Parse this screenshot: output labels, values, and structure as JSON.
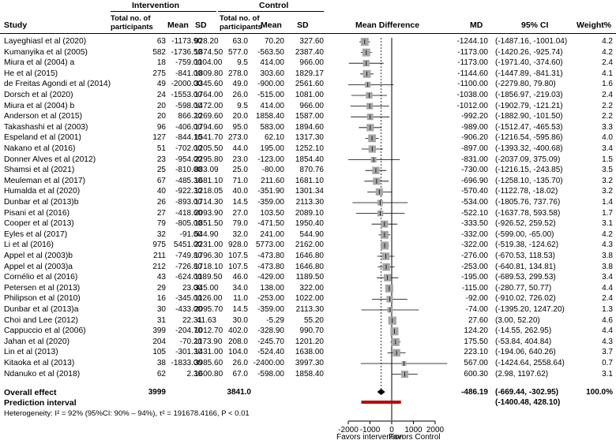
{
  "headers": {
    "intervention": "Intervention",
    "control": "Control",
    "study": "Study",
    "total_participants": "Total no. of participants",
    "mean": "Mean",
    "sd": "SD",
    "mean_difference": "Mean Difference",
    "md": "MD",
    "ci": "95% CI",
    "weight": "Weight%"
  },
  "rows": [
    {
      "study": "Layeghiasl et al (2020)",
      "n1": "63",
      "m1": "-1173.90",
      "sd1": "928.20",
      "n2": "63.0",
      "m2": "70.20",
      "sd2": "327.60",
      "md": "-1244.10",
      "ci": "(-1487.16, -1001.04)",
      "w": "4.2"
    },
    {
      "study": "Kumanyika et al (2005)",
      "n1": "582",
      "m1": "-1736.50",
      "sd1": "1874.50",
      "n2": "577.0",
      "m2": "-563.50",
      "sd2": "2387.40",
      "md": "-1173.00",
      "ci": "(-1420.26, -925.74)",
      "w": "4.2"
    },
    {
      "study": "Miura et al (2004) a",
      "n1": "18",
      "m1": "-759.00",
      "sd1": "1104.00",
      "n2": "9.5",
      "m2": "414.00",
      "sd2": "966.00",
      "md": "-1173.00",
      "ci": "(-1971.40, -374.60)",
      "w": "2.4"
    },
    {
      "study": "He et al (2015)",
      "n1": "275",
      "m1": "-841.00",
      "sd1": "1809.80",
      "n2": "278.0",
      "m2": "303.60",
      "sd2": "1829.17",
      "md": "-1144.60",
      "ci": "(-1447.89, -841.31)",
      "w": "4.1"
    },
    {
      "study": "de Freitas Agondi et al (2014)",
      "n1": "49",
      "m1": "-2000.00",
      "sd1": "3345.60",
      "n2": "49.0",
      "m2": "-900.00",
      "sd2": "2561.60",
      "md": "-1100.00",
      "ci": "(-2279.80, 79.80)",
      "w": "1.6"
    },
    {
      "study": "Dorsch et al (2020)",
      "n1": "24",
      "m1": "-1553.00",
      "sd1": "1764.00",
      "n2": "26.0",
      "m2": "-515.00",
      "sd2": "1081.00",
      "md": "-1038.00",
      "ci": "(-1856.97, -219.03)",
      "w": "2.4"
    },
    {
      "study": "Miura et al (2004) b",
      "n1": "20",
      "m1": "-598.00",
      "sd1": "1472.00",
      "n2": "9.5",
      "m2": "414.00",
      "sd2": "966.00",
      "md": "-1012.00",
      "ci": "(-1902.79, -121.21)",
      "w": "2.2"
    },
    {
      "study": "Anderson et al (2015)",
      "n1": "20",
      "m1": "866.20",
      "sd1": "1269.60",
      "n2": "20.0",
      "m2": "1858.40",
      "sd2": "1587.00",
      "md": "-992.20",
      "ci": "(-1882.90, -101.50)",
      "w": "2.2"
    },
    {
      "study": "Takashashi et al (2003)",
      "n1": "96",
      "m1": "-406.00",
      "sd1": "1794.60",
      "n2": "95.0",
      "m2": "583.00",
      "sd2": "1894.60",
      "md": "-989.00",
      "ci": "(-1512.47, -465.53)",
      "w": "3.3"
    },
    {
      "study": "Espeland et al (2001)",
      "n1": "127",
      "m1": "-844.10",
      "sd1": "1541.70",
      "n2": "273.0",
      "m2": "62.10",
      "sd2": "1317.30",
      "md": "-906.20",
      "ci": "(-1216.54, -595.86)",
      "w": "4.0"
    },
    {
      "study": "Nakano et al (2016)",
      "n1": "51",
      "m1": "-702.00",
      "sd1": "1205.50",
      "n2": "44.0",
      "m2": "195.00",
      "sd2": "1252.10",
      "md": "-897.00",
      "ci": "(-1393.32, -400.68)",
      "w": "3.4"
    },
    {
      "study": "Donner Alves et al (2012)",
      "n1": "23",
      "m1": "-954.00",
      "sd1": "2295.80",
      "n2": "23.0",
      "m2": "-123.00",
      "sd2": "1854.40",
      "md": "-831.00",
      "ci": "(-2037.09, 375.09)",
      "w": "1.5"
    },
    {
      "study": "Shamsi et al (2021)",
      "n1": "25",
      "m1": "-810.00",
      "sd1": "883.09",
      "n2": "25.0",
      "m2": "-80.00",
      "sd2": "870.76",
      "md": "-730.00",
      "ci": "(-1216.15, -243.85)",
      "w": "3.5"
    },
    {
      "study": "Meuleman et al (2017)",
      "n1": "67",
      "m1": "-485.30",
      "sd1": "1681.10",
      "n2": "71.0",
      "m2": "211.60",
      "sd2": "1681.10",
      "md": "-696.90",
      "ci": "(-1258.10, -135.70)",
      "w": "3.2"
    },
    {
      "study": "Humalda et al (2020)",
      "n1": "40",
      "m1": "-922.30",
      "sd1": "1218.05",
      "n2": "40.0",
      "m2": "-351.90",
      "sd2": "1301.34",
      "md": "-570.40",
      "ci": "(-1122.78, -18.02)",
      "w": "3.2"
    },
    {
      "study": "Dunbar et al (2013)b",
      "n1": "26",
      "m1": "-893.00",
      "sd1": "1714.30",
      "n2": "14.5",
      "m2": "-359.00",
      "sd2": "2113.30",
      "md": "-534.00",
      "ci": "(-1805.76, 737.76)",
      "w": "1.4"
    },
    {
      "study": "Pisani et al (2016)",
      "n1": "27",
      "m1": "-418.60",
      "sd1": "2093.90",
      "n2": "27.0",
      "m2": "103.50",
      "sd2": "2089.10",
      "md": "-522.10",
      "ci": "(-1637.78, 593.58)",
      "w": "1.7"
    },
    {
      "study": "Cooper et al (2013)",
      "n1": "79",
      "m1": "-805.00",
      "sd1": "1851.50",
      "n2": "79.0",
      "m2": "-471.50",
      "sd2": "1950.40",
      "md": "-333.50",
      "ci": "(-926.52, 259.52)",
      "w": "3.1"
    },
    {
      "study": "Eyles et al (2017)",
      "n1": "32",
      "m1": "-91.00",
      "sd1": "544.90",
      "n2": "32.0",
      "m2": "241.00",
      "sd2": "544.90",
      "md": "-332.00",
      "ci": "(-599.00, -65.00)",
      "w": "4.2"
    },
    {
      "study": "Li et al (2016)",
      "n1": "975",
      "m1": "5451.00",
      "sd1": "2231.00",
      "n2": "928.0",
      "m2": "5773.00",
      "sd2": "2162.00",
      "md": "-322.00",
      "ci": "(-519.38, -124.62)",
      "w": "4.3"
    },
    {
      "study": "Appel et al (2003)b",
      "n1": "211",
      "m1": "-749.80",
      "sd1": "1796.30",
      "n2": "107.5",
      "m2": "-473.80",
      "sd2": "1646.80",
      "md": "-276.00",
      "ci": "(-670.53, 118.53)",
      "w": "3.8"
    },
    {
      "study": "Appel et al (2003)a",
      "n1": "212",
      "m1": "-726.80",
      "sd1": "1718.10",
      "n2": "107.5",
      "m2": "-473.80",
      "sd2": "1646.80",
      "md": "-253.00",
      "ci": "(-640.81, 134.81)",
      "w": "3.8"
    },
    {
      "study": "Cornélio et al (2016)",
      "n1": "43",
      "m1": "-624.00",
      "sd1": "1189.50",
      "n2": "46.0",
      "m2": "-429.00",
      "sd2": "1189.50",
      "md": "-195.00",
      "ci": "(-689.53, 299.53)",
      "w": "3.4"
    },
    {
      "study": "Petersen et al (2013)",
      "n1": "29",
      "m1": "23.00",
      "sd1": "345.00",
      "n2": "34.0",
      "m2": "138.00",
      "sd2": "322.00",
      "md": "-115.00",
      "ci": "(-280.77, 50.77)",
      "w": "4.4"
    },
    {
      "study": "Philipson et al (2010)",
      "n1": "16",
      "m1": "-345.00",
      "sd1": "1126.00",
      "n2": "11.0",
      "m2": "-253.00",
      "sd2": "1022.00",
      "md": "-92.00",
      "ci": "(-910.02, 726.02)",
      "w": "2.4"
    },
    {
      "study": "Dunbar et al (2013)a",
      "n1": "30",
      "m1": "-433.00",
      "sd1": "2095.70",
      "n2": "14.5",
      "m2": "-359.00",
      "sd2": "2113.30",
      "md": "-74.00",
      "ci": "(-1395.20, 1247.20)",
      "w": "1.3"
    },
    {
      "study": "Choi and Lee (2012)",
      "n1": "31",
      "m1": "22.31",
      "sd1": "41.63",
      "n2": "30.0",
      "m2": "-5.29",
      "sd2": "55.20",
      "md": "27.60",
      "ci": "(3.00, 52.20)",
      "w": "4.6"
    },
    {
      "study": "Cappuccio et al (2006)",
      "n1": "399",
      "m1": "-204.70",
      "sd1": "1012.70",
      "n2": "402.0",
      "m2": "-328.90",
      "sd2": "990.70",
      "md": "124.20",
      "ci": "(-14.55, 262.95)",
      "w": "4.4"
    },
    {
      "study": "Jahan et al (2020)",
      "n1": "204",
      "m1": "-70.20",
      "sd1": "1173.90",
      "n2": "208.0",
      "m2": "-245.70",
      "sd2": "1201.20",
      "md": "175.50",
      "ci": "(-53.84, 404.84)",
      "w": "4.3"
    },
    {
      "study": "Lin et al (2013)",
      "n1": "105",
      "m1": "-301.30",
      "sd1": "1431.00",
      "n2": "104.0",
      "m2": "-524.40",
      "sd2": "1638.00",
      "md": "223.10",
      "ci": "(-194.06, 640.26)",
      "w": "3.7"
    },
    {
      "study": "Kitaoka et al (2013)",
      "n1": "38",
      "m1": "-1833.00",
      "sd1": "3985.60",
      "n2": "26.0",
      "m2": "-2400.00",
      "sd2": "3997.30",
      "md": "567.00",
      "ci": "(-1424.64, 2558.64)",
      "w": "0.7"
    },
    {
      "study": "Ndanuko et al (2018)",
      "n1": "62",
      "m1": "2.30",
      "sd1": "1600.80",
      "n2": "67.0",
      "m2": "-598.00",
      "sd2": "1858.40",
      "md": "600.30",
      "ci": "(2.98, 1197.62)",
      "w": "3.1"
    }
  ],
  "overall": {
    "label": "Overall effect",
    "n1": "3999",
    "n2": "3841.0",
    "md": "-486.19",
    "ci": "(-669.44, -302.95)",
    "w": "100.0%"
  },
  "prediction": {
    "label": "Prediction interval",
    "ci": "(-1400.48, 428.10)"
  },
  "heterogeneity": "Heterogeneity: I² = 92% (95%CI: 90% – 94%), τ² = 191678.4166, P < 0.01",
  "chart_data": {
    "type": "forest",
    "xlim": [
      -2000,
      2000
    ],
    "xticks": [
      -2000,
      -1000,
      0,
      1000,
      2000
    ],
    "xtick_labels": [
      "-2000",
      "-1000",
      "0",
      "1000",
      "2000"
    ],
    "xlabel_left": "Favors intervention",
    "xlabel_right": "Favors Control",
    "reference_line": 0,
    "overall_line": -486.19,
    "estimates": [
      -1244.1,
      -1173.0,
      -1173.0,
      -1144.6,
      -1100.0,
      -1038.0,
      -1012.0,
      -992.2,
      -989.0,
      -906.2,
      -897.0,
      -831.0,
      -730.0,
      -696.9,
      -570.4,
      -534.0,
      -522.1,
      -333.5,
      -332.0,
      -322.0,
      -276.0,
      -253.0,
      -195.0,
      -115.0,
      -92.0,
      -74.0,
      27.6,
      124.2,
      175.5,
      223.1,
      567.0,
      600.3
    ],
    "lower": [
      -1487.16,
      -1420.26,
      -1971.4,
      -1447.89,
      -2279.8,
      -1856.97,
      -1902.79,
      -1882.9,
      -1512.47,
      -1216.54,
      -1393.32,
      -2037.09,
      -1216.15,
      -1258.1,
      -1122.78,
      -1805.76,
      -1637.78,
      -926.52,
      -599.0,
      -519.38,
      -670.53,
      -640.81,
      -689.53,
      -280.77,
      -910.02,
      -1395.2,
      3.0,
      -14.55,
      -53.84,
      -194.06,
      -1424.64,
      2.98
    ],
    "upper": [
      -1001.04,
      -925.74,
      -374.6,
      -841.31,
      79.8,
      -219.03,
      -121.21,
      -101.5,
      -465.53,
      -595.86,
      -400.68,
      375.09,
      -243.85,
      -135.7,
      -18.02,
      737.76,
      593.58,
      259.52,
      -65.0,
      -124.62,
      118.53,
      134.81,
      299.53,
      50.77,
      726.02,
      1247.2,
      52.2,
      262.95,
      404.84,
      640.26,
      2558.64,
      1197.62
    ],
    "weights": [
      4.2,
      4.2,
      2.4,
      4.1,
      1.6,
      2.4,
      2.2,
      2.2,
      3.3,
      4.0,
      3.4,
      1.5,
      3.5,
      3.2,
      3.2,
      1.4,
      1.7,
      3.1,
      4.2,
      4.3,
      3.8,
      3.8,
      3.4,
      4.4,
      2.4,
      1.3,
      4.6,
      4.4,
      4.3,
      3.7,
      0.7,
      3.1
    ],
    "overall": {
      "estimate": -486.19,
      "lower": -669.44,
      "upper": -302.95
    },
    "prediction_interval": {
      "lower": -1400.48,
      "upper": 428.1
    },
    "colors": {
      "box": "#a6a6a6",
      "line": "#000000",
      "prediction": "#c00000",
      "diamond": "#000000"
    }
  }
}
